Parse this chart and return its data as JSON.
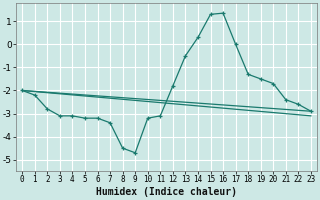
{
  "xlabel": "Humidex (Indice chaleur)",
  "background_color": "#cde8e5",
  "grid_color": "#ffffff",
  "line_color": "#1a7a6e",
  "xlim": [
    -0.5,
    23.5
  ],
  "ylim": [
    -5.5,
    1.8
  ],
  "yticks": [
    -5,
    -4,
    -3,
    -2,
    -1,
    0,
    1
  ],
  "xticks": [
    0,
    1,
    2,
    3,
    4,
    5,
    6,
    7,
    8,
    9,
    10,
    11,
    12,
    13,
    14,
    15,
    16,
    17,
    18,
    19,
    20,
    21,
    22,
    23
  ],
  "line1_x": [
    0,
    1,
    2,
    3,
    4,
    5,
    6,
    7,
    8,
    9,
    10,
    11,
    12,
    13,
    14,
    15,
    16,
    17,
    18,
    19,
    20,
    21,
    22,
    23
  ],
  "line1_y": [
    -2.0,
    -2.2,
    -2.8,
    -3.1,
    -3.1,
    -3.2,
    -3.2,
    -3.4,
    -4.5,
    -4.7,
    -3.2,
    -3.1,
    -1.8,
    -0.5,
    0.3,
    1.3,
    1.35,
    0.0,
    -1.3,
    -1.5,
    -1.7,
    -2.4,
    -2.6,
    -2.9
  ],
  "line2_x": [
    0,
    23
  ],
  "line2_y": [
    -2.0,
    -2.9
  ],
  "line3_x": [
    0,
    23
  ],
  "line3_y": [
    -2.0,
    -3.1
  ]
}
